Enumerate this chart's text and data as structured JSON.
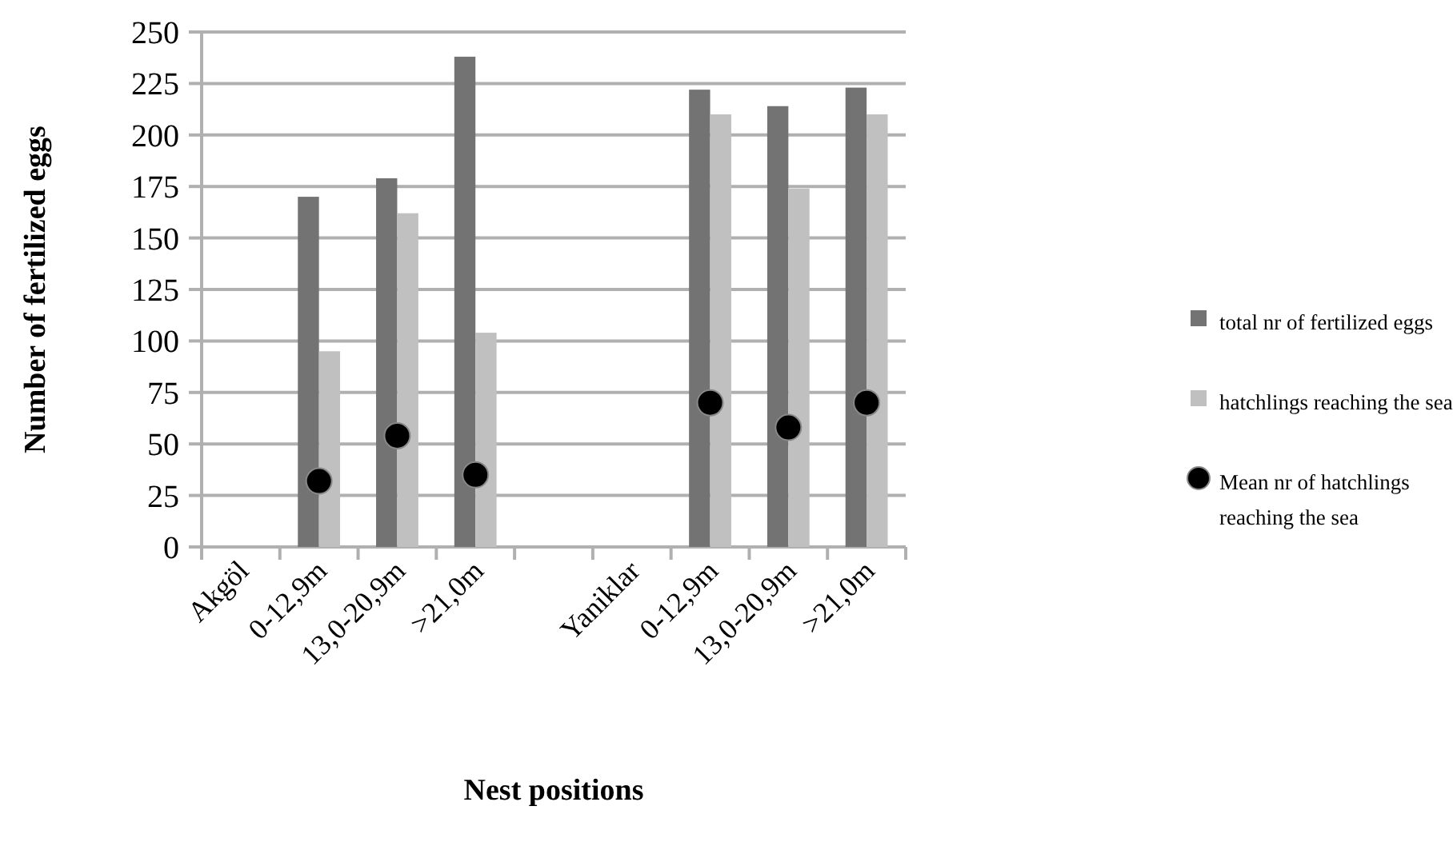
{
  "chart_data": {
    "type": "bar",
    "xlabel": "Nest positions",
    "ylabel": "Number of fertilized eggs",
    "categories": [
      "Akgöl",
      "0-12,9m",
      "13,0-20,9m",
      ">21,0m",
      null,
      "Yaniklar",
      "0-12,9m",
      "13,0-20,9m",
      ">21,0m"
    ],
    "series": [
      {
        "name": "total nr of fertilized eggs",
        "color": "#737373",
        "values": [
          null,
          170,
          179,
          238,
          null,
          null,
          222,
          214,
          223
        ]
      },
      {
        "name": "hatchlings reaching the sea",
        "color": "#c0c0c0",
        "values": [
          null,
          95,
          162,
          104,
          null,
          null,
          210,
          174,
          210
        ]
      },
      {
        "name": "Mean nr of hatchlings reaching the sea",
        "type": "scatter",
        "color": "#000000",
        "values": [
          null,
          32,
          54,
          35,
          null,
          null,
          70,
          58,
          70
        ]
      }
    ],
    "ylim": [
      0,
      250
    ],
    "yticks": [
      0,
      25,
      50,
      75,
      100,
      125,
      150,
      175,
      200,
      225,
      250
    ],
    "grid": "y",
    "legend": "right",
    "marker": "circle"
  }
}
